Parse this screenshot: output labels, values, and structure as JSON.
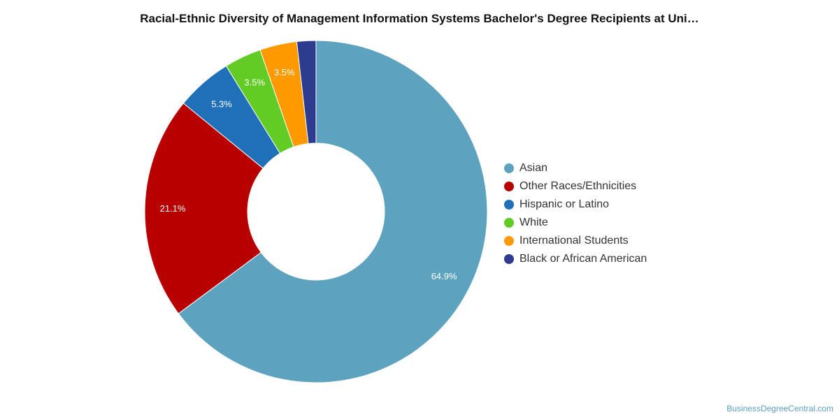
{
  "chart_data": {
    "type": "pie",
    "title": "Racial-Ethnic Diversity of Management Information Systems Bachelor's Degree Recipients at Uni…",
    "donut": true,
    "legend_position": "right",
    "slices": [
      {
        "name": "Asian",
        "value": 64.9,
        "label": "64.9%",
        "color": "#5da3bf"
      },
      {
        "name": "Other Races/Ethnicities",
        "value": 21.1,
        "label": "21.1%",
        "color": "#b80000"
      },
      {
        "name": "Hispanic or Latino",
        "value": 5.3,
        "label": "5.3%",
        "color": "#1f70b8"
      },
      {
        "name": "White",
        "value": 3.5,
        "label": "3.5%",
        "color": "#62cc24"
      },
      {
        "name": "International Students",
        "value": 3.5,
        "label": "3.5%",
        "color": "#ff9900"
      },
      {
        "name": "Black or African American",
        "value": 1.8,
        "label": "",
        "color": "#2d3c8f"
      }
    ]
  },
  "footer": {
    "source": "BusinessDegreeCentral.com"
  }
}
